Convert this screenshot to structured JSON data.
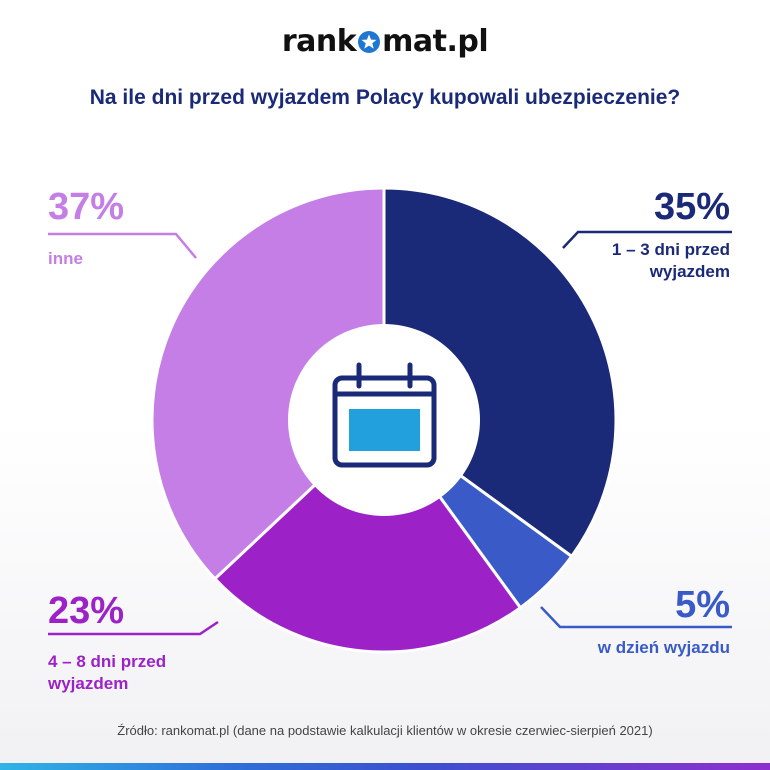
{
  "logo": {
    "text_left": "rank",
    "text_right": "mat.pl"
  },
  "title": "Na ile dni przed wyjazdem Polacy kupowali ubezpieczenie?",
  "source": "Źródło: rankomat.pl (dane na podstawie kalkulacji klientów w okresie czerwiec-sierpień 2021)",
  "center_icon": "calendar-icon",
  "colors": {
    "navy": "#1b2a78",
    "blue": "#3a5bc7",
    "purple": "#9c22c8",
    "lavender": "#c57ee6",
    "icon_fill": "#22a0dd"
  },
  "chart_data": {
    "type": "pie",
    "title": "Na ile dni przed wyjazdem Polacy kupowali ubezpieczenie?",
    "slices": [
      {
        "label": "1 – 3 dni przed wyjazdem",
        "value": 35,
        "display": "35%",
        "color": "#1b2a78"
      },
      {
        "label": "w dzień wyjazdu",
        "value": 5,
        "display": "5%",
        "color": "#3a5bc7"
      },
      {
        "label": "4 – 8 dni przed wyjazdem",
        "value": 23,
        "display": "23%",
        "color": "#9c22c8"
      },
      {
        "label": "inne",
        "value": 37,
        "display": "37%",
        "color": "#c57ee6"
      }
    ]
  }
}
